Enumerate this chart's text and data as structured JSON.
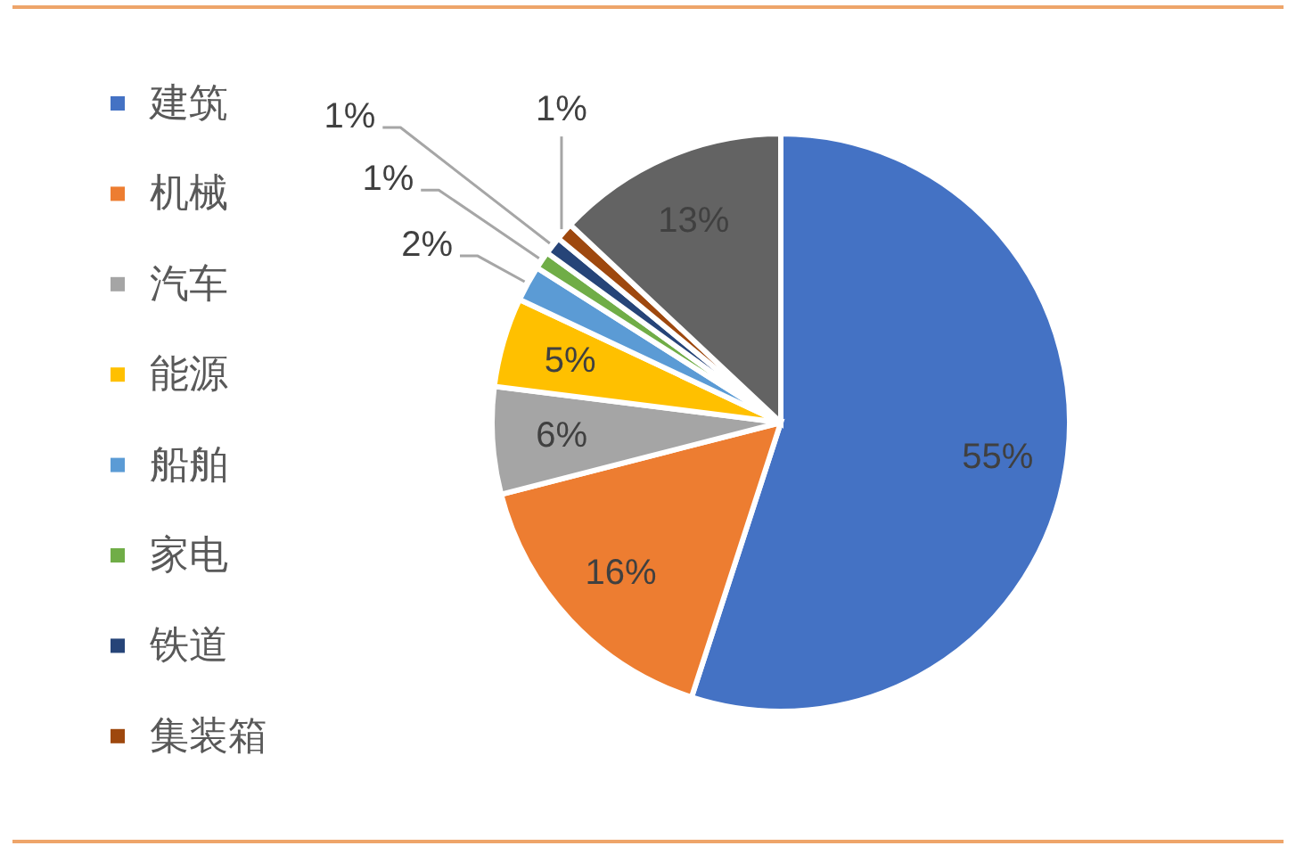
{
  "chart_data": {
    "type": "pie",
    "categories": [
      "建筑",
      "机械",
      "汽车",
      "能源",
      "船舶",
      "家电",
      "铁道",
      "集装箱",
      null
    ],
    "values": [
      55,
      16,
      6,
      5,
      2,
      1,
      1,
      1,
      13
    ],
    "colors": [
      "#4472c4",
      "#ed7d31",
      "#a5a5a5",
      "#ffc000",
      "#5b9bd5",
      "#70ad47",
      "#264478",
      "#9e480e",
      "#636363"
    ],
    "value_labels": [
      "55%",
      "16%",
      "6%",
      "5%",
      "2%",
      "1%",
      "1%",
      "1%",
      "13%"
    ],
    "legend": "left"
  }
}
